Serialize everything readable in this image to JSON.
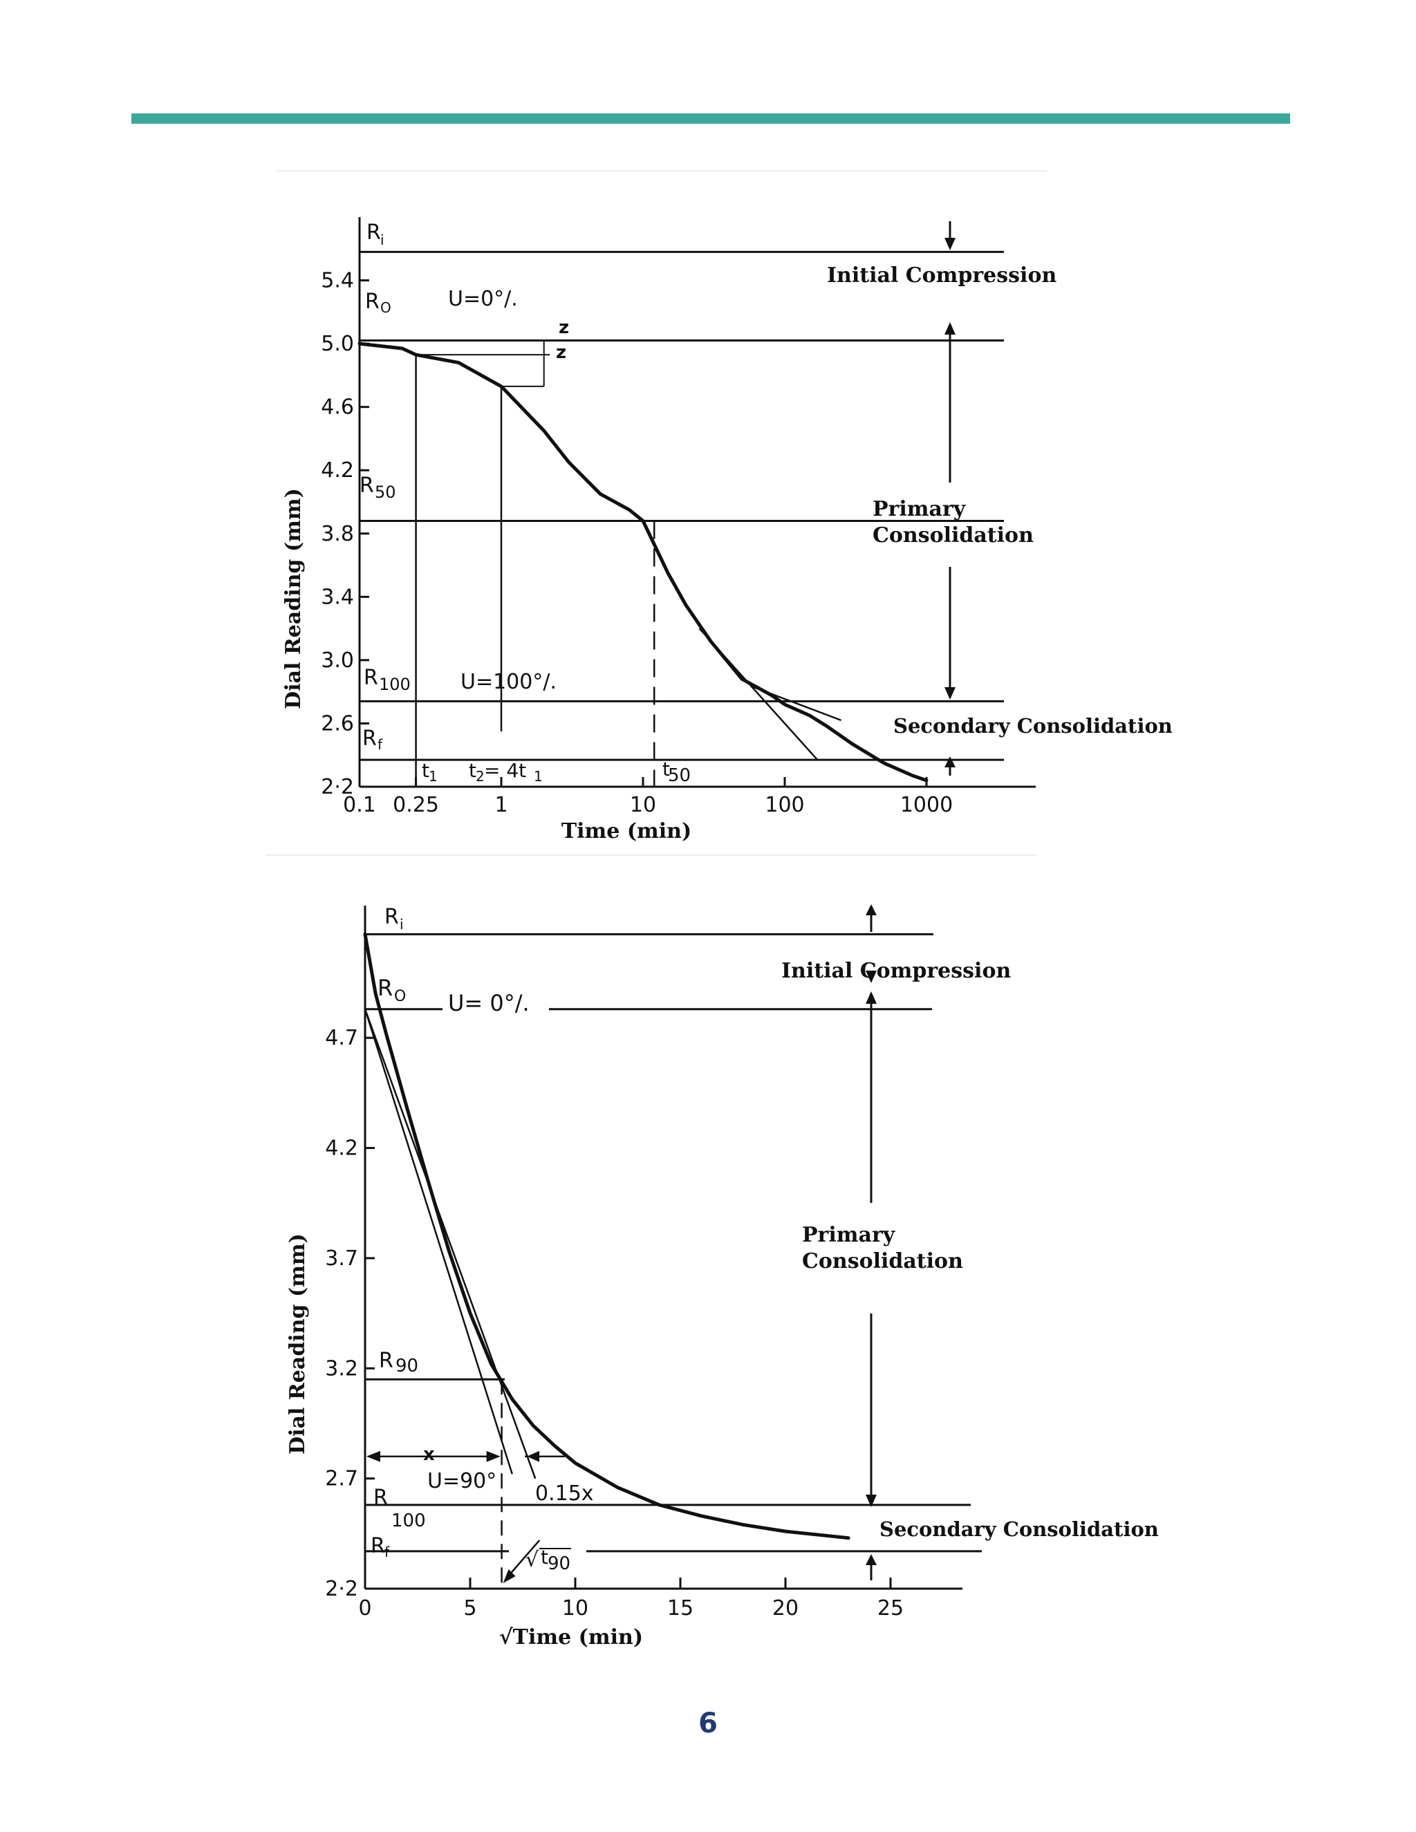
{
  "page": {
    "page_number": "6",
    "colors": {
      "top_rule": "#3aa99a",
      "page_number": "#1f3b73",
      "ink": "#111111"
    }
  },
  "chart_data": [
    {
      "type": "line",
      "title": "",
      "xlabel": "Time (min)",
      "ylabel": "Dial Reading (mm)",
      "x_scale": "log",
      "xlim": [
        0.1,
        2500
      ],
      "ylim": [
        2.2,
        5.8
      ],
      "x_ticks": [
        0.1,
        0.25,
        1,
        10,
        100,
        1000
      ],
      "x_tick_labels": [
        "0.1",
        "0.25",
        "1",
        "10",
        "100",
        "1000"
      ],
      "y_ticks": [
        2.2,
        2.6,
        3.0,
        3.4,
        3.8,
        4.2,
        4.6,
        5.0,
        5.4
      ],
      "y_tick_labels": [
        "2·2",
        "2.6",
        "3.0",
        "3.4",
        "3.8",
        "4.2",
        "4.6",
        "5.0",
        "5.4"
      ],
      "series": [
        {
          "name": "",
          "x": [
            0.1,
            0.2,
            0.25,
            0.5,
            1,
            2,
            3,
            5,
            8,
            10,
            15,
            20,
            30,
            50,
            80,
            100,
            150,
            200,
            300,
            500,
            800,
            1000
          ],
          "y": [
            5.0,
            4.97,
            4.93,
            4.88,
            4.73,
            4.45,
            4.25,
            4.05,
            3.95,
            3.88,
            3.55,
            3.35,
            3.12,
            2.88,
            2.78,
            2.72,
            2.65,
            2.58,
            2.47,
            2.35,
            2.27,
            2.24
          ]
        }
      ],
      "lines": {
        "R_i": 5.58,
        "R_o": 5.02,
        "R_50": 3.88,
        "R_100": 2.74,
        "R_f": 2.37
      },
      "t1": 0.25,
      "t2": 1,
      "t50": 12,
      "labels": {
        "r_i": "R",
        "r_i_sub": "i",
        "r_o": "R",
        "r_o_sub": "O",
        "r_50": "R",
        "r_50_sub": "50",
        "r_100": "R",
        "r_100_sub": "100",
        "r_f": "R",
        "r_f_sub": "f",
        "u0": "U=0°/.",
        "u100": "U=100°/.",
        "z": "z",
        "t1": "t",
        "t1_sub": "1",
        "t2": "t",
        "t2_sub": "2",
        "t2_eq": "= 4t",
        "t2_eq_sub": "1",
        "t50": "t",
        "t50_sub": "50",
        "initial_compression": "Initial Compression",
        "primary_1": "Primary",
        "primary_2": "Consolidation",
        "secondary": "Secondary Consolidation"
      }
    },
    {
      "type": "line",
      "title": "",
      "xlabel": "√Time (min)",
      "ylabel": "Dial Reading (mm)",
      "x_scale": "linear",
      "xlim": [
        0,
        28
      ],
      "ylim": [
        2.2,
        5.3
      ],
      "x_ticks": [
        0,
        5,
        10,
        15,
        20,
        25
      ],
      "x_tick_labels": [
        "0",
        "5",
        "10",
        "15",
        "20",
        "25"
      ],
      "y_ticks": [
        2.2,
        2.7,
        3.2,
        3.7,
        4.2,
        4.7
      ],
      "y_tick_labels": [
        "2·2",
        "2.7",
        "3.2",
        "3.7",
        "4.2",
        "4.7"
      ],
      "series": [
        {
          "name": "",
          "x": [
            0,
            0.5,
            1,
            2,
            3,
            4,
            5,
            6,
            7,
            8,
            9,
            10,
            12,
            14,
            16,
            18,
            20,
            23
          ],
          "y": [
            5.17,
            4.9,
            4.72,
            4.38,
            4.05,
            3.73,
            3.45,
            3.22,
            3.06,
            2.94,
            2.85,
            2.77,
            2.66,
            2.58,
            2.53,
            2.49,
            2.46,
            2.43
          ]
        }
      ],
      "lines": {
        "R_i": 5.17,
        "R_o": 4.83,
        "R_90": 3.15,
        "R_100": 2.58,
        "R_f": 2.37
      },
      "sqrt_t90": 6.5,
      "labels": {
        "r_i": "R",
        "r_i_sub": "i",
        "r_o": "R",
        "r_o_sub": "O",
        "r_90": "R",
        "r_90_sub": "90",
        "r_100": "R",
        "r_100_sub": "100",
        "r_f": "R",
        "r_f_sub": "f",
        "u0": "U= 0°/.",
        "u90": "U=90°",
        "x": "x",
        "x015": "0.15x",
        "t90": "t",
        "t90_sub": "90",
        "initial_compression": "Initial Compression",
        "primary_1": "Primary",
        "primary_2": "Consolidation",
        "secondary": "Secondary Consolidation"
      }
    }
  ]
}
